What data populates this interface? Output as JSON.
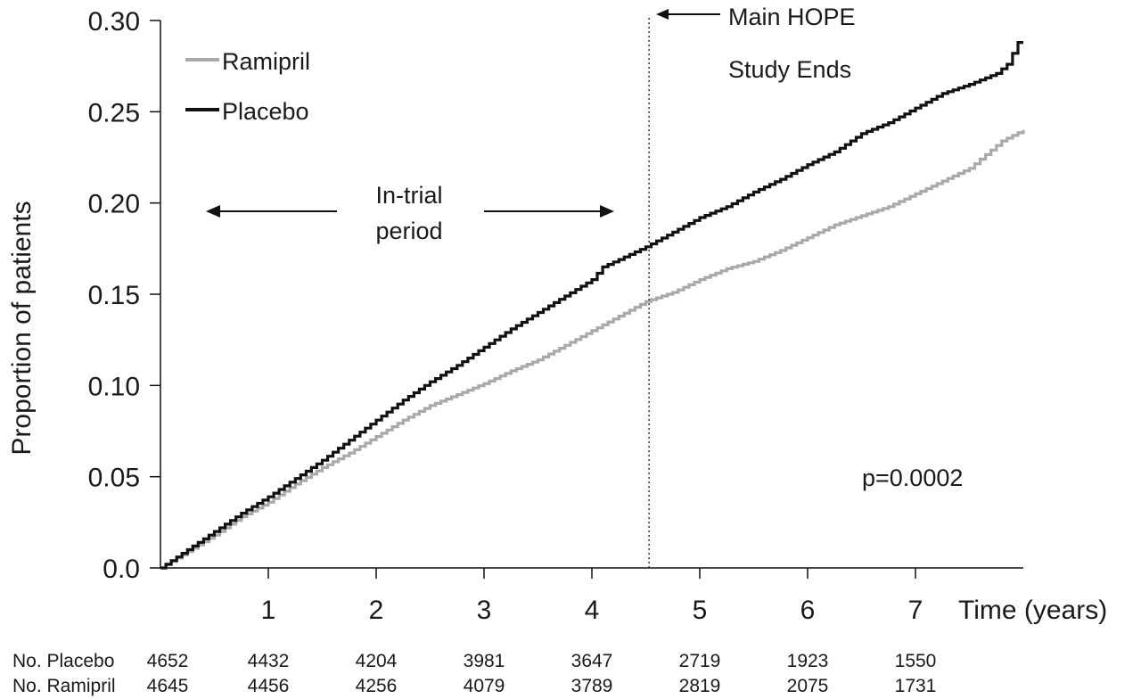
{
  "chart_data": {
    "type": "line",
    "xlabel": "Time (years)",
    "ylabel": "Proportion of patients",
    "xlim": [
      0,
      8
    ],
    "ylim": [
      0,
      0.3
    ],
    "x_ticks": [
      "1",
      "2",
      "3",
      "4",
      "5",
      "6",
      "7"
    ],
    "y_ticks": [
      "0.0",
      "0.05",
      "0.10",
      "0.15",
      "0.20",
      "0.25",
      "0.30"
    ],
    "grid": false,
    "legend_position": "top-left",
    "series": [
      {
        "name": "Ramipril",
        "color": "#a9a9a9",
        "x": [
          0,
          0.25,
          0.5,
          0.75,
          1,
          1.25,
          1.5,
          1.75,
          2,
          2.25,
          2.5,
          2.75,
          3,
          3.25,
          3.5,
          3.75,
          4,
          4.25,
          4.5,
          4.75,
          5,
          5.25,
          5.5,
          5.75,
          6,
          6.25,
          6.5,
          6.75,
          7,
          7.25,
          7.5,
          7.8,
          8
        ],
        "values": [
          0,
          0.009,
          0.018,
          0.028,
          0.036,
          0.046,
          0.055,
          0.063,
          0.072,
          0.081,
          0.089,
          0.095,
          0.101,
          0.108,
          0.114,
          0.122,
          0.13,
          0.138,
          0.146,
          0.151,
          0.158,
          0.164,
          0.168,
          0.174,
          0.181,
          0.188,
          0.193,
          0.198,
          0.205,
          0.212,
          0.219,
          0.234,
          0.24
        ]
      },
      {
        "name": "Placebo",
        "color": "#111111",
        "x": [
          0,
          0.25,
          0.5,
          0.75,
          1,
          1.25,
          1.5,
          1.75,
          2,
          2.25,
          2.5,
          2.75,
          3,
          3.25,
          3.5,
          3.75,
          4,
          4.1,
          4.25,
          4.5,
          4.75,
          5,
          5.25,
          5.5,
          5.75,
          6,
          6.25,
          6.5,
          6.75,
          7,
          7.25,
          7.5,
          7.75,
          7.85,
          7.95,
          8
        ],
        "values": [
          0,
          0.01,
          0.02,
          0.03,
          0.039,
          0.049,
          0.059,
          0.07,
          0.081,
          0.092,
          0.102,
          0.111,
          0.121,
          0.131,
          0.14,
          0.149,
          0.158,
          0.165,
          0.169,
          0.176,
          0.184,
          0.192,
          0.198,
          0.206,
          0.213,
          0.221,
          0.228,
          0.238,
          0.244,
          0.252,
          0.26,
          0.265,
          0.271,
          0.276,
          0.288,
          0.288
        ]
      }
    ],
    "vline": {
      "x": 4.53,
      "style": "dotted"
    },
    "annotations": {
      "main_hope": "Main HOPE",
      "study_ends": "Study Ends",
      "in_trial": "In-trial",
      "period": "period",
      "pvalue": "p=0.0002"
    },
    "risk_table": {
      "rows": [
        {
          "label": "No. Placebo",
          "values": [
            "4652",
            "4432",
            "4204",
            "3981",
            "3647",
            "2719",
            "1923",
            "1550"
          ]
        },
        {
          "label": "No. Ramipril",
          "values": [
            "4645",
            "4456",
            "4256",
            "4079",
            "3789",
            "2819",
            "2075",
            "1731"
          ]
        }
      ]
    }
  }
}
